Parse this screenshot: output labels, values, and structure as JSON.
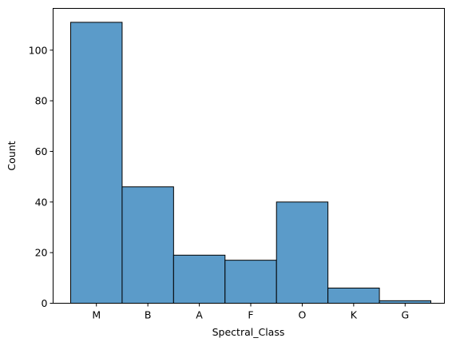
{
  "chart_data": {
    "type": "bar",
    "categories": [
      "M",
      "B",
      "A",
      "F",
      "O",
      "K",
      "G"
    ],
    "values": [
      111,
      46,
      19,
      17,
      40,
      6,
      1
    ],
    "title": "",
    "xlabel": "Spectral_Class",
    "ylabel": "Count",
    "ylim": [
      0,
      116.5
    ],
    "yticks": [
      0,
      20,
      40,
      60,
      80,
      100
    ],
    "ytick_labels": [
      "0",
      "20",
      "40",
      "60",
      "80",
      "100"
    ],
    "grid": false,
    "legend": "none",
    "bar_color": "#5b9bc9",
    "edge_color": "#000000"
  }
}
